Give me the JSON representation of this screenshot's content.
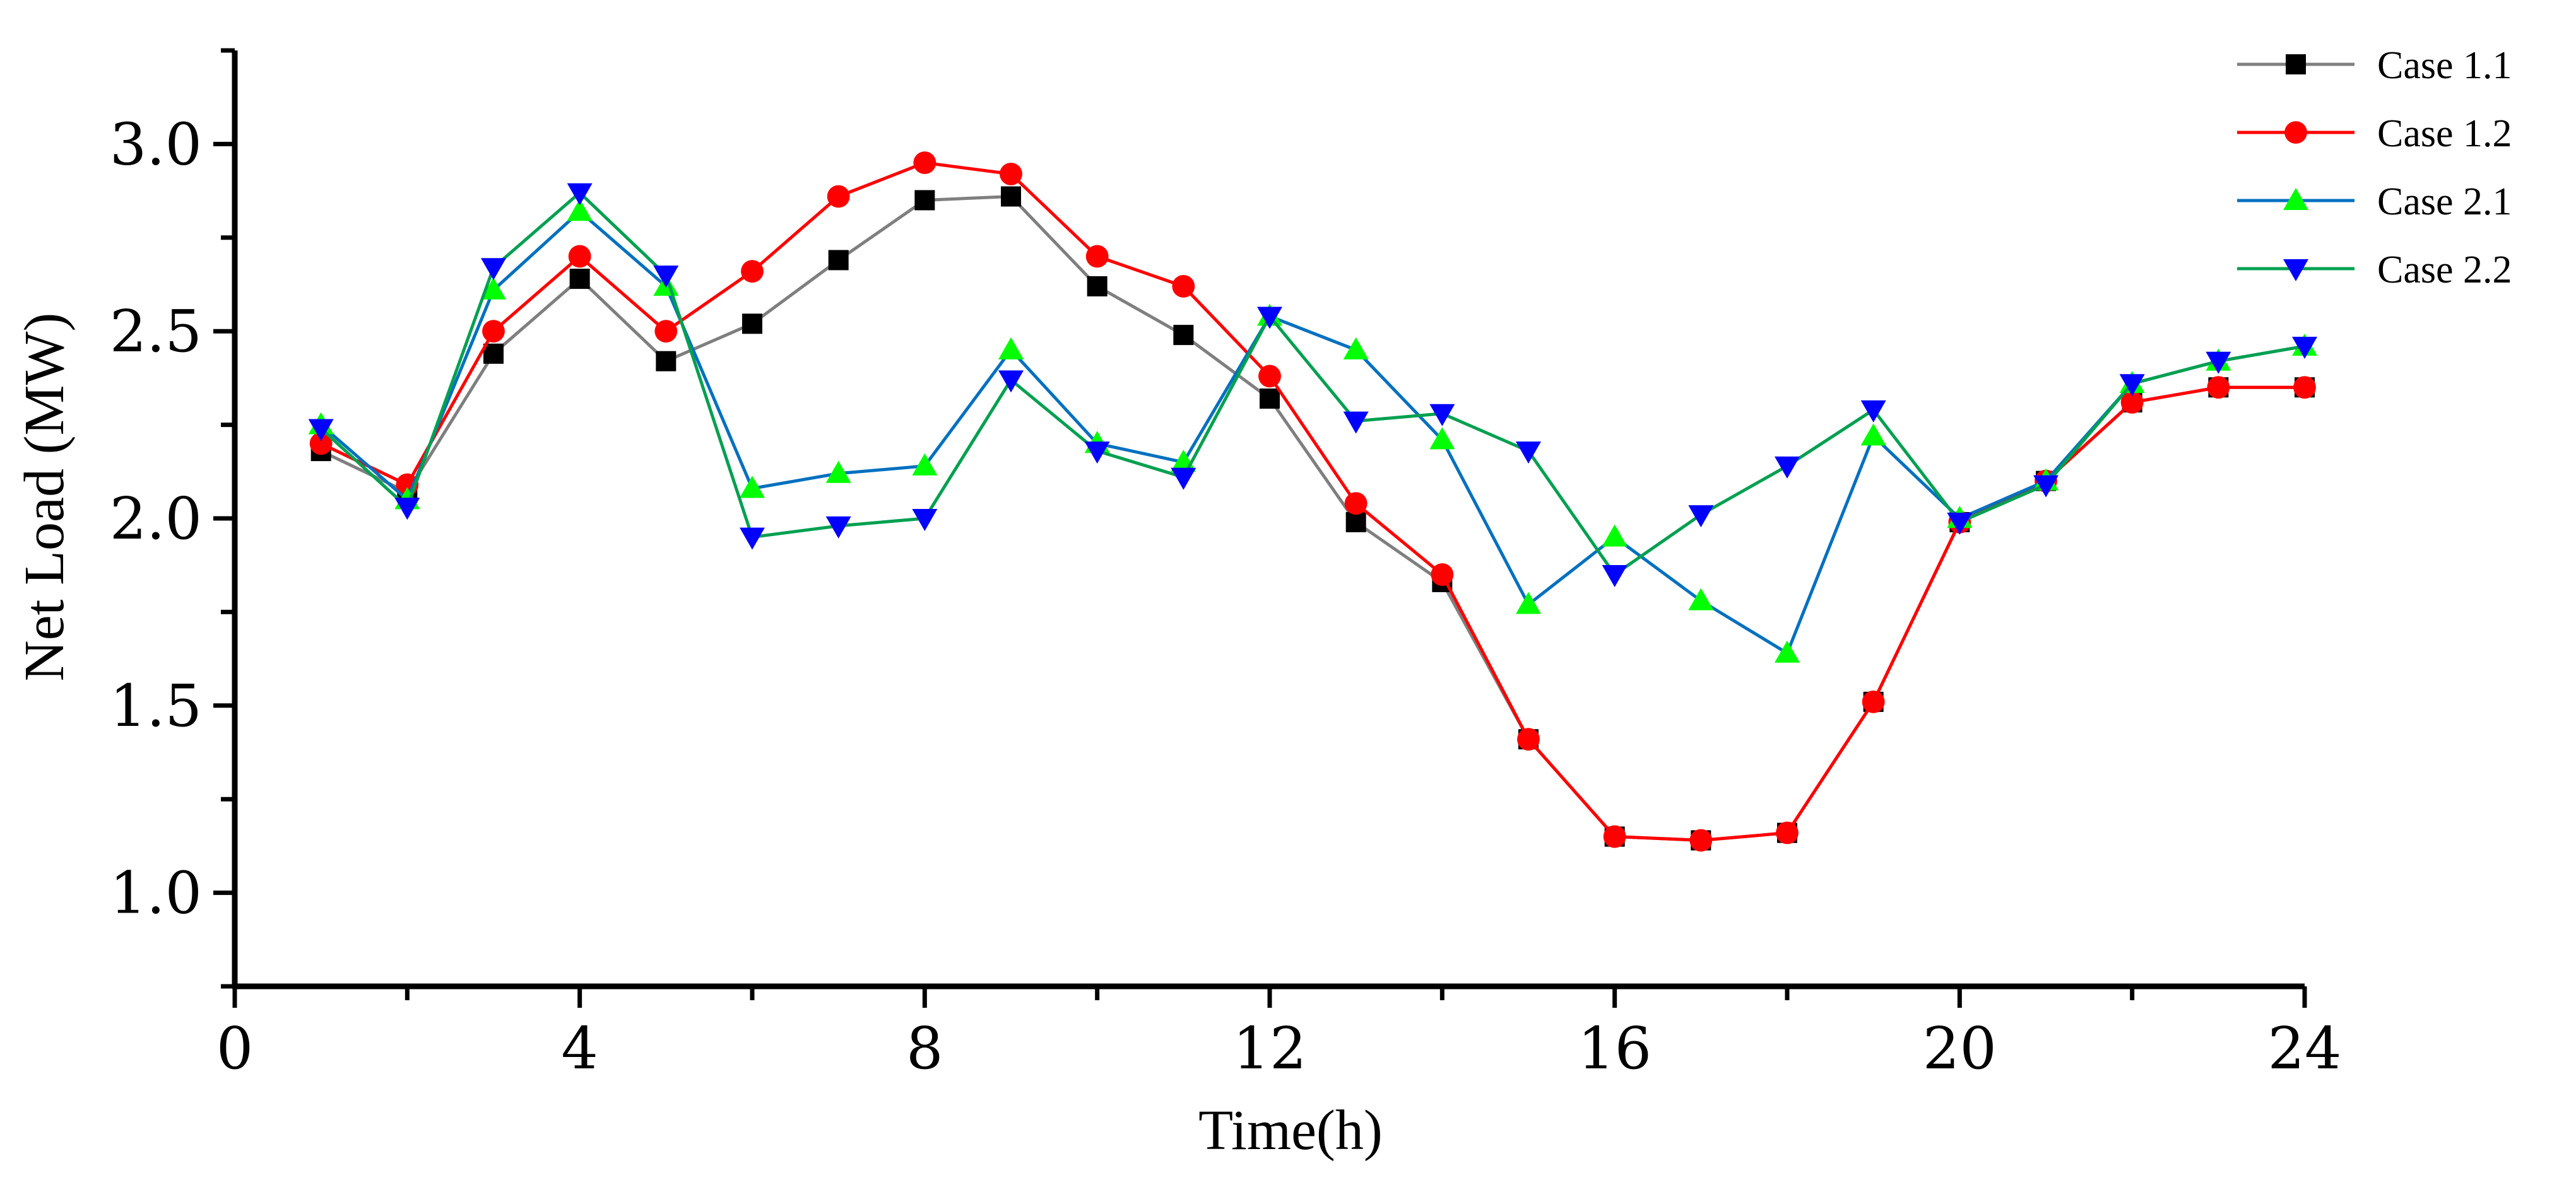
{
  "chart_data": {
    "type": "line",
    "title": "",
    "xlabel": "Time(h)",
    "ylabel": "Net Load (MW)",
    "xlim": [
      0,
      24
    ],
    "ylim": [
      0.75,
      3.25
    ],
    "xticks": [
      0,
      4,
      8,
      12,
      16,
      20,
      24
    ],
    "yticks": [
      1.0,
      1.5,
      2.0,
      2.5,
      3.0
    ],
    "ytick_labels": [
      "1.0",
      "1.5",
      "2.0",
      "2.5",
      "3.0"
    ],
    "grid": false,
    "legend_position": "top-right",
    "x": [
      1,
      2,
      3,
      4,
      5,
      6,
      7,
      8,
      9,
      10,
      11,
      12,
      13,
      14,
      15,
      16,
      17,
      18,
      19,
      20,
      21,
      22,
      23,
      24
    ],
    "series": [
      {
        "name": "Case 1.1",
        "line_color": "#7f7f7f",
        "marker_color": "#000000",
        "marker": "square",
        "values": [
          2.18,
          2.07,
          2.44,
          2.64,
          2.42,
          2.52,
          2.69,
          2.85,
          2.86,
          2.62,
          2.49,
          2.32,
          1.99,
          1.83,
          1.41,
          1.15,
          1.14,
          1.16,
          1.51,
          1.99,
          2.1,
          2.31,
          2.35,
          2.35
        ]
      },
      {
        "name": "Case 1.2",
        "line_color": "#ff0000",
        "marker_color": "#ff0000",
        "marker": "circle",
        "values": [
          2.2,
          2.09,
          2.5,
          2.7,
          2.5,
          2.66,
          2.86,
          2.95,
          2.92,
          2.7,
          2.62,
          2.38,
          2.04,
          1.85,
          1.41,
          1.15,
          1.14,
          1.16,
          1.51,
          1.99,
          2.1,
          2.31,
          2.35,
          2.35
        ]
      },
      {
        "name": "Case 2.1",
        "line_color": "#0070c0",
        "marker_color": "#00ff00",
        "marker": "triangle-up",
        "values": [
          2.25,
          2.05,
          2.61,
          2.82,
          2.62,
          2.08,
          2.12,
          2.14,
          2.45,
          2.2,
          2.15,
          2.54,
          2.45,
          2.21,
          1.77,
          1.95,
          1.78,
          1.64,
          2.22,
          2.0,
          2.1,
          2.36,
          2.42,
          2.46
        ]
      },
      {
        "name": "Case 2.2",
        "line_color": "#00a050",
        "marker_color": "#0000ff",
        "marker": "triangle-down",
        "values": [
          2.24,
          2.03,
          2.67,
          2.87,
          2.65,
          1.95,
          1.98,
          2.0,
          2.37,
          2.18,
          2.11,
          2.54,
          2.26,
          2.28,
          2.18,
          1.85,
          2.01,
          2.14,
          2.29,
          1.99,
          2.09,
          2.36,
          2.42,
          2.46
        ]
      }
    ]
  }
}
